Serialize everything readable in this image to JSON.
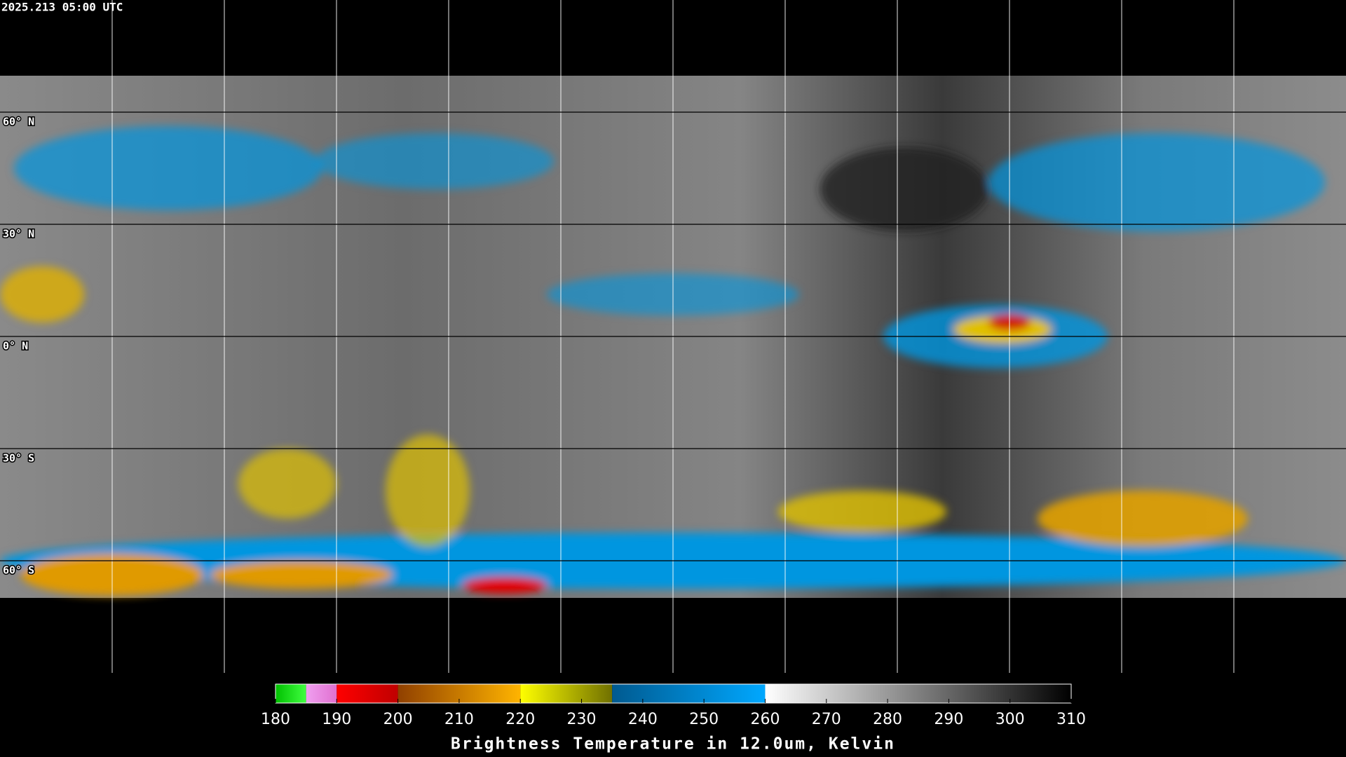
{
  "header": {
    "timestamp": "2025.213 05:00 UTC"
  },
  "map": {
    "lat_labels": [
      "60° N",
      "30° N",
      "0° N",
      "30° S",
      "60° S"
    ]
  },
  "colorbar": {
    "label": "Brightness Temperature in 12.0um, Kelvin",
    "range": [
      180,
      310
    ],
    "ticks": [
      180,
      190,
      200,
      210,
      220,
      230,
      240,
      250,
      260,
      270,
      280,
      290,
      300,
      310
    ],
    "segments": [
      {
        "from": 180,
        "to": 185,
        "colors": [
          "#00c000",
          "#40ff40"
        ]
      },
      {
        "from": 185,
        "to": 190,
        "colors": [
          "#f0a0f0",
          "#e070d0"
        ]
      },
      {
        "from": 190,
        "to": 200,
        "colors": [
          "#ff0000",
          "#c00000"
        ]
      },
      {
        "from": 200,
        "to": 220,
        "colors": [
          "#904000",
          "#ffb400"
        ]
      },
      {
        "from": 220,
        "to": 235,
        "colors": [
          "#ffff00",
          "#707000"
        ]
      },
      {
        "from": 235,
        "to": 260,
        "colors": [
          "#005a90",
          "#00a8ff"
        ]
      },
      {
        "from": 260,
        "to": 310,
        "colors": [
          "#ffffff",
          "#000000"
        ]
      }
    ]
  }
}
